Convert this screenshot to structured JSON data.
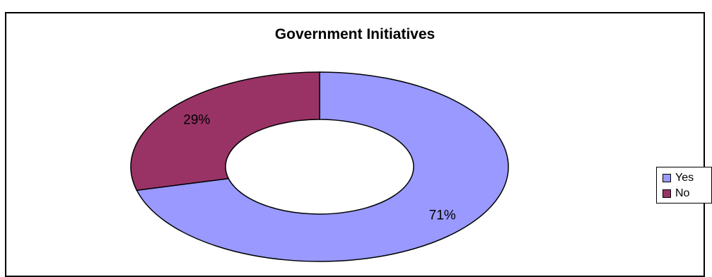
{
  "chart_data": {
    "type": "pie",
    "title": "Government Initiatives",
    "categories": [
      "Yes",
      "No"
    ],
    "values": [
      71,
      29
    ],
    "labels": [
      "71%",
      "29%"
    ],
    "colors": [
      "#9999ff",
      "#993366"
    ],
    "donut": true,
    "legend_position": "right"
  }
}
